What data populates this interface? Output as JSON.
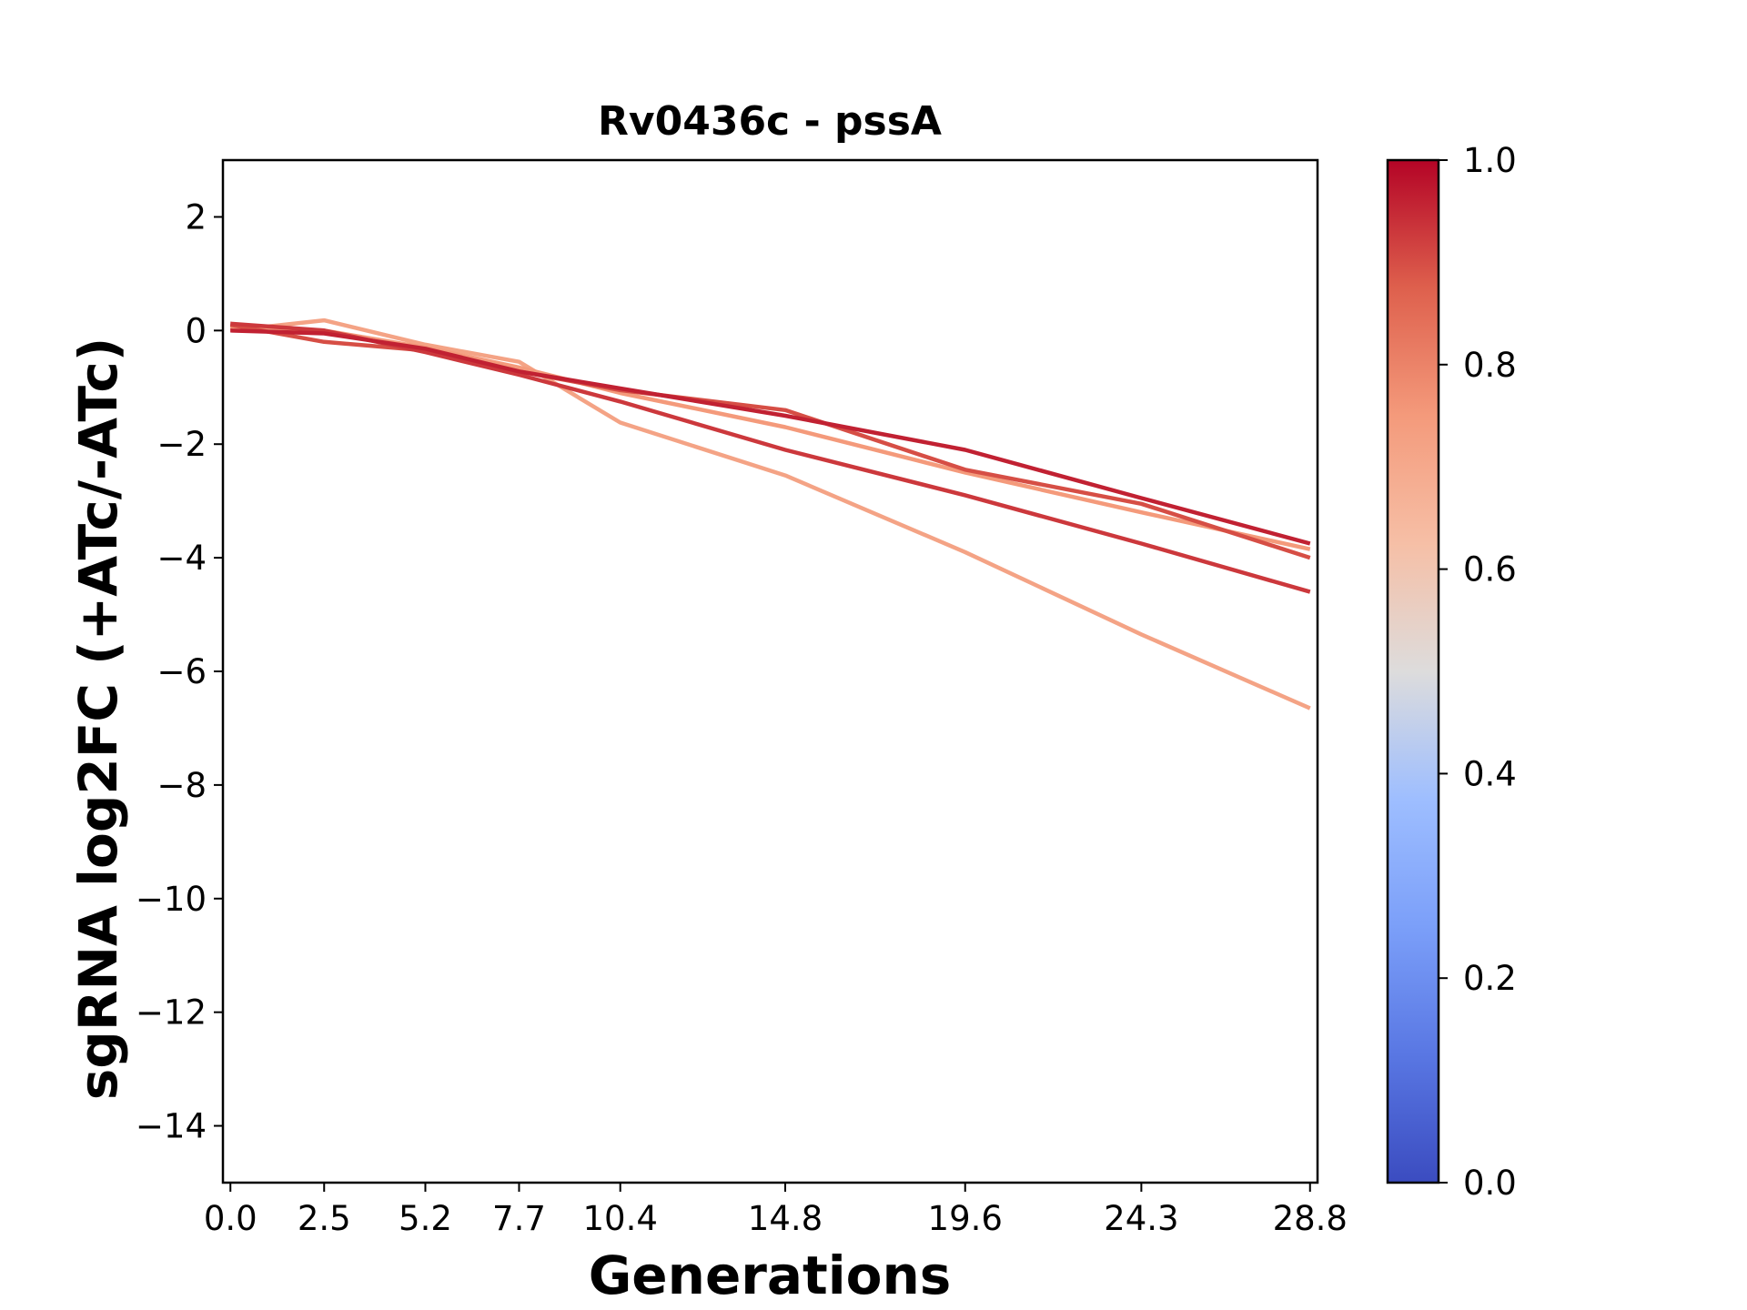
{
  "chart_data": {
    "type": "line",
    "title": "Rv0436c - pssA",
    "xlabel": "Generations",
    "ylabel": "sgRNA log2FC (+ATc/-ATc)",
    "x": [
      0.0,
      2.5,
      5.2,
      7.7,
      10.4,
      14.8,
      19.6,
      24.3,
      28.8
    ],
    "x_tick_labels": [
      "0.0",
      "2.5",
      "5.2",
      "7.7",
      "10.4",
      "14.8",
      "19.6",
      "24.3",
      "28.8"
    ],
    "xlim": [
      -0.2,
      29.0
    ],
    "ylim": [
      -15,
      3
    ],
    "y_ticks": [
      2,
      0,
      -2,
      -4,
      -6,
      -8,
      -10,
      -12,
      -14
    ],
    "y_tick_labels": [
      "2",
      "0",
      "−2",
      "−4",
      "−6",
      "−8",
      "−10",
      "−12",
      "−14"
    ],
    "series": [
      {
        "color_value": 0.72,
        "values": [
          0.0,
          0.18,
          -0.25,
          -0.55,
          -1.62,
          -2.55,
          -3.9,
          -5.35,
          -6.65
        ]
      },
      {
        "color_value": 0.75,
        "values": [
          0.05,
          0.0,
          -0.3,
          -0.65,
          -1.1,
          -1.7,
          -2.5,
          -3.2,
          -3.85
        ]
      },
      {
        "color_value": 0.9,
        "values": [
          0.1,
          -0.2,
          -0.35,
          -0.72,
          -1.05,
          -1.4,
          -2.45,
          -3.05,
          -4.0
        ]
      },
      {
        "color_value": 0.93,
        "values": [
          0.12,
          0.0,
          -0.38,
          -0.78,
          -1.25,
          -2.1,
          -2.9,
          -3.75,
          -4.6
        ]
      },
      {
        "color_value": 0.96,
        "values": [
          0.0,
          -0.05,
          -0.32,
          -0.72,
          -1.02,
          -1.5,
          -2.1,
          -2.95,
          -3.75
        ]
      }
    ],
    "colorbar": {
      "range": [
        0.0,
        1.0
      ],
      "ticks": [
        "0.0",
        "0.2",
        "0.4",
        "0.6",
        "0.8",
        "1.0"
      ],
      "tick_values": [
        0.0,
        0.2,
        0.4,
        0.6,
        0.8,
        1.0
      ],
      "colormap": "coolwarm"
    },
    "grid": false
  }
}
